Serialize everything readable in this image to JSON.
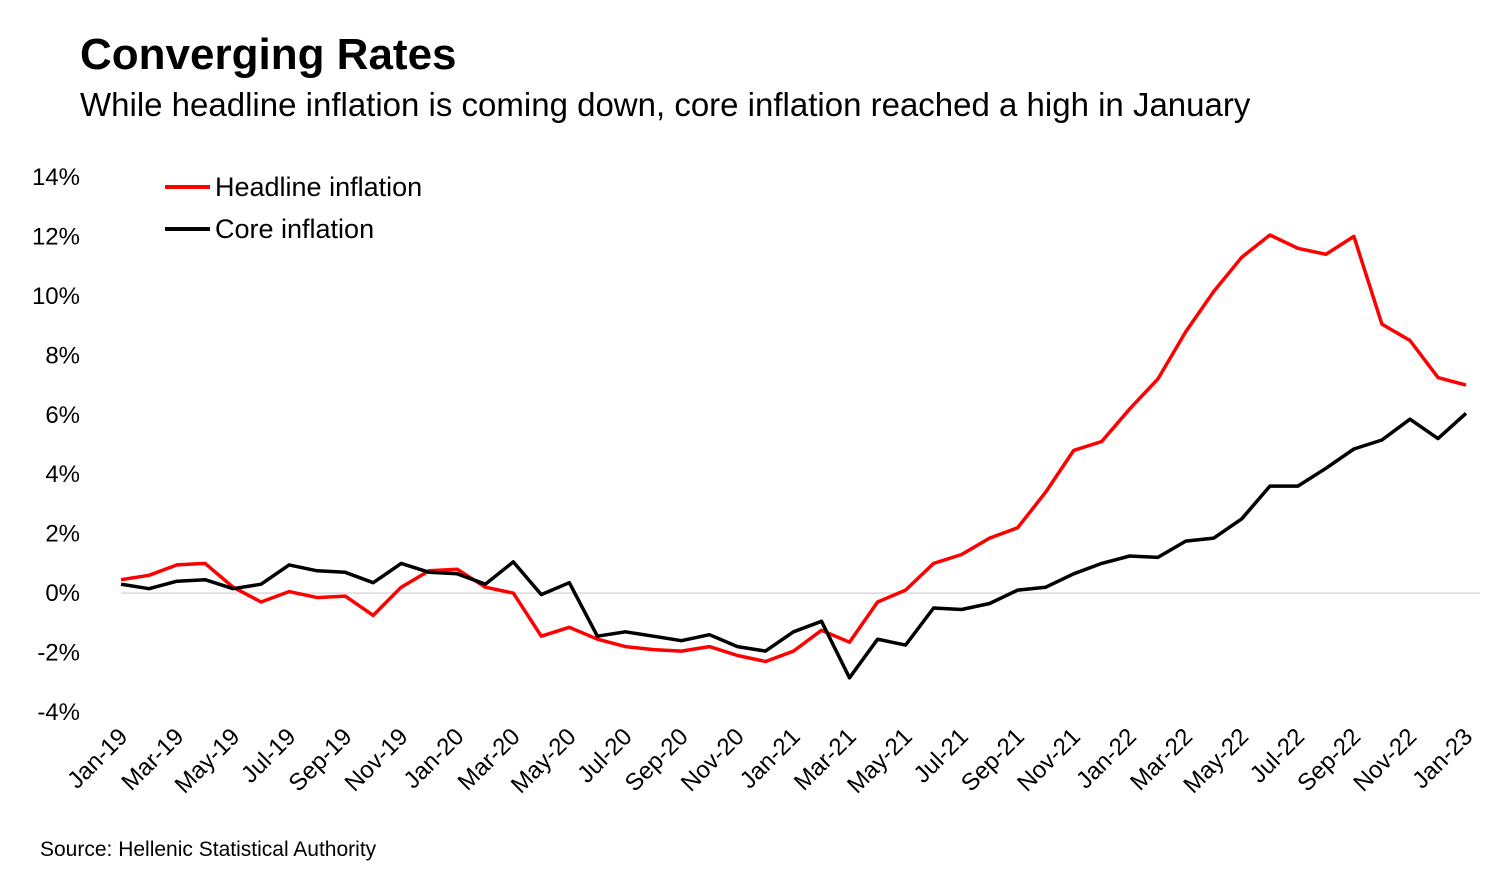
{
  "title": "Converging Rates",
  "subtitle": "While headline inflation is coming down, core inflation reached a high in January",
  "source": "Source: Hellenic Statistical Authority",
  "chart_data": {
    "type": "line",
    "y_tick_labels": [
      "-4%",
      "-2%",
      "0%",
      "2%",
      "4%",
      "6%",
      "8%",
      "10%",
      "12%",
      "14%"
    ],
    "y_tick_values": [
      -4,
      -2,
      0,
      2,
      4,
      6,
      8,
      10,
      12,
      14
    ],
    "ylim": [
      -4,
      14
    ],
    "grid": false,
    "legend_position": "top-left",
    "x": [
      "Jan-19",
      "Feb-19",
      "Mar-19",
      "Apr-19",
      "May-19",
      "Jun-19",
      "Jul-19",
      "Aug-19",
      "Sep-19",
      "Oct-19",
      "Nov-19",
      "Dec-19",
      "Jan-20",
      "Feb-20",
      "Mar-20",
      "Apr-20",
      "May-20",
      "Jun-20",
      "Jul-20",
      "Aug-20",
      "Sep-20",
      "Oct-20",
      "Nov-20",
      "Dec-20",
      "Jan-21",
      "Feb-21",
      "Mar-21",
      "Apr-21",
      "May-21",
      "Jun-21",
      "Jul-21",
      "Aug-21",
      "Sep-21",
      "Oct-21",
      "Nov-21",
      "Dec-21",
      "Jan-22",
      "Feb-22",
      "Mar-22",
      "Apr-22",
      "May-22",
      "Jun-22",
      "Jul-22",
      "Aug-22",
      "Sep-22",
      "Oct-22",
      "Nov-22",
      "Dec-22",
      "Jan-23"
    ],
    "x_tick_labels": [
      "Jan-19",
      "Mar-19",
      "May-19",
      "Jul-19",
      "Sep-19",
      "Nov-19",
      "Jan-20",
      "Mar-20",
      "May-20",
      "Jul-20",
      "Sep-20",
      "Nov-20",
      "Jan-21",
      "Mar-21",
      "May-21",
      "Jul-21",
      "Sep-21",
      "Nov-21",
      "Jan-22",
      "Mar-22",
      "May-22",
      "Jul-22",
      "Sep-22",
      "Nov-22",
      "Jan-23"
    ],
    "series": [
      {
        "name": "Headline inflation",
        "color": "#ff0000",
        "values": [
          0.45,
          0.6,
          0.95,
          1.0,
          0.2,
          -0.3,
          0.05,
          -0.15,
          -0.1,
          -0.75,
          0.2,
          0.75,
          0.8,
          0.2,
          0.0,
          -1.45,
          -1.15,
          -1.55,
          -1.8,
          -1.9,
          -1.95,
          -1.8,
          -2.1,
          -2.3,
          -1.95,
          -1.25,
          -1.65,
          -0.3,
          0.1,
          1.0,
          1.3,
          1.85,
          2.2,
          3.4,
          4.8,
          5.1,
          6.2,
          7.2,
          8.8,
          10.15,
          11.3,
          12.05,
          11.6,
          11.4,
          12.0,
          9.05,
          8.5,
          7.25,
          7.0
        ]
      },
      {
        "name": "Core inflation",
        "color": "#000000",
        "values": [
          0.3,
          0.15,
          0.4,
          0.45,
          0.15,
          0.3,
          0.95,
          0.75,
          0.7,
          0.35,
          1.0,
          0.7,
          0.65,
          0.3,
          1.05,
          -0.05,
          0.35,
          -1.45,
          -1.3,
          -1.45,
          -1.6,
          -1.4,
          -1.8,
          -1.95,
          -1.3,
          -0.95,
          -2.85,
          -1.55,
          -1.75,
          -0.5,
          -0.55,
          -0.35,
          0.1,
          0.2,
          0.65,
          1.0,
          1.25,
          1.2,
          1.75,
          1.85,
          2.5,
          3.6,
          3.6,
          4.2,
          4.85,
          5.15,
          5.85,
          5.2,
          6.05
        ]
      }
    ]
  }
}
